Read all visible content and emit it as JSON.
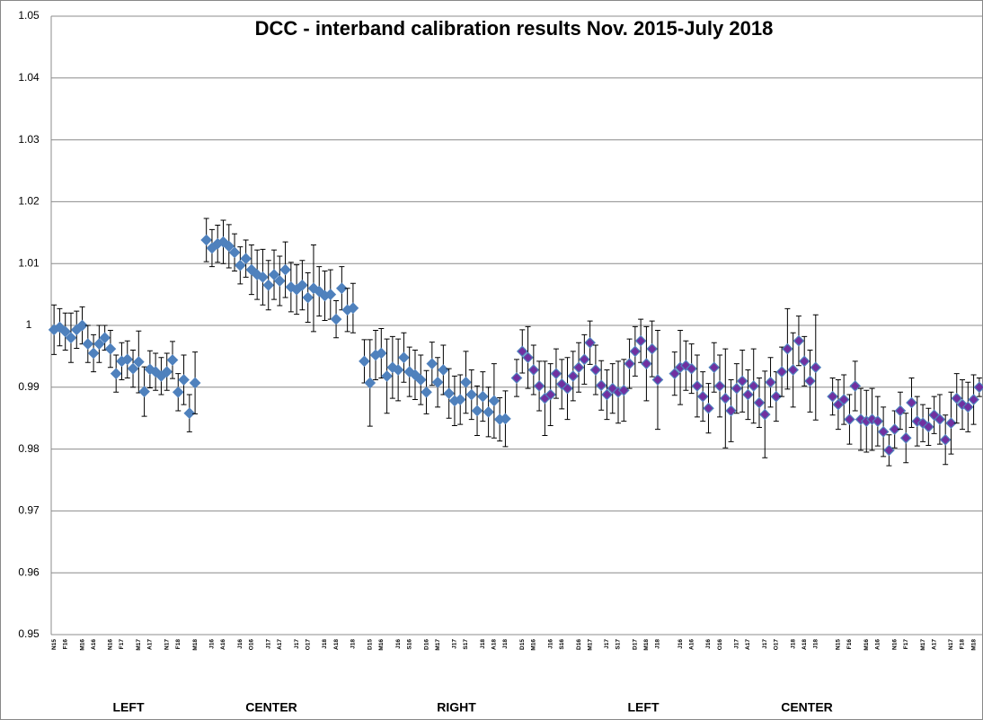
{
  "chart_data": {
    "type": "scatter",
    "title": "DCC - interband calibration results Nov. 2015-July 2018",
    "group_labels": [
      "LEFT",
      "CENTER",
      "RIGHT",
      "LEFT",
      "CENTER"
    ],
    "categories": [
      "N15",
      null,
      "F16",
      null,
      null,
      "M16",
      null,
      "A16",
      null,
      null,
      "N16",
      null,
      "F17",
      null,
      null,
      "M17",
      null,
      "A17",
      null,
      null,
      "N17",
      null,
      "F18",
      null,
      null,
      "M18",
      null,
      null,
      "J16",
      null,
      "A16",
      null,
      null,
      "J16",
      null,
      "O16",
      null,
      null,
      "J17",
      null,
      "A17",
      null,
      null,
      "J17",
      null,
      "O17",
      null,
      null,
      "J18",
      null,
      "A18",
      null,
      null,
      "J18",
      null,
      null,
      "D15",
      null,
      "M16",
      null,
      null,
      "J16",
      null,
      "S16",
      null,
      null,
      "D16",
      null,
      "M17",
      null,
      null,
      "J17",
      null,
      "S17",
      null,
      null,
      "J18",
      null,
      "A18",
      null,
      "J18",
      null,
      null,
      "D15",
      null,
      "M16",
      null,
      null,
      "J16",
      null,
      "S16",
      null,
      null,
      "D16",
      null,
      "M17",
      null,
      null,
      "J17",
      null,
      "S17",
      null,
      null,
      "D17",
      null,
      "M18",
      null,
      "J18",
      null,
      null,
      null,
      "J16",
      null,
      "A16",
      null,
      null,
      "J16",
      null,
      "O16",
      null,
      null,
      "J17",
      null,
      "A17",
      null,
      null,
      "J17",
      null,
      "O17",
      null,
      null,
      "J18",
      null,
      "A18",
      null,
      "J18",
      null,
      null,
      null,
      "N15",
      null,
      "F16",
      null,
      null,
      "M16",
      null,
      "A16",
      null,
      null,
      "N16",
      null,
      "F17",
      null,
      null,
      "M17",
      null,
      "A17",
      null,
      null,
      "N17",
      null,
      "F18",
      null,
      "M18",
      null
    ],
    "ylim": [
      0.95,
      1.05
    ],
    "yticks": [
      0.95,
      0.96,
      0.97,
      0.98,
      0.99,
      1,
      1.01,
      1.02,
      1.03,
      1.04,
      1.05
    ],
    "grid": true,
    "series": [
      {
        "color": "#4f81bd",
        "values": [
          0.9993,
          0.9997,
          0.999,
          0.998,
          0.9993,
          1.0,
          0.997,
          0.9955,
          0.997,
          0.998,
          0.9962,
          0.9922,
          0.9942,
          0.9945,
          0.993,
          0.9941,
          0.9893,
          0.9929,
          0.9925,
          0.9918,
          0.9925,
          0.9944,
          0.9892,
          0.9912,
          0.9858,
          0.9907,
          null,
          1.0138,
          1.0125,
          1.0132,
          1.0135,
          1.0128,
          1.0118,
          1.0097,
          1.0108,
          1.009,
          1.0082,
          1.0078,
          1.0065,
          1.0082,
          1.0072,
          1.009,
          1.0062,
          1.0058,
          1.0065,
          1.0045,
          1.006,
          1.0055,
          1.0048,
          1.005,
          1.001,
          1.006,
          1.0025,
          1.0028,
          null,
          0.9942,
          0.9907,
          0.9952,
          0.9955,
          0.9918,
          0.9932,
          0.9928,
          0.9948,
          0.9925,
          0.992,
          0.9912,
          0.9892,
          0.9938,
          0.9908,
          0.9928,
          0.989,
          0.9878,
          0.988,
          0.9908,
          0.9888,
          0.9862,
          0.9885,
          0.986,
          0.9878,
          0.9848,
          0.9849,
          null,
          null,
          null,
          null,
          null,
          null,
          null,
          null,
          null,
          null,
          null,
          null,
          null,
          null,
          null,
          null,
          null,
          null,
          null,
          null,
          null,
          null,
          null,
          null,
          null,
          null,
          null,
          null,
          null,
          null,
          null,
          null,
          null,
          null,
          null,
          null,
          null,
          null,
          null,
          null,
          null,
          null,
          null,
          null,
          null,
          null,
          null,
          null,
          null,
          null,
          null,
          null,
          null,
          null,
          null,
          null,
          null,
          null,
          null,
          null,
          null,
          null,
          null,
          null,
          null,
          null,
          null,
          null,
          null,
          null,
          null,
          null,
          null,
          null,
          null,
          null,
          null,
          null,
          null,
          null,
          null,
          null,
          null,
          null
        ],
        "errors": [
          0.004,
          0.003,
          0.003,
          0.004,
          0.003,
          0.003,
          0.003,
          0.003,
          0.003,
          0.002,
          0.003,
          0.003,
          0.003,
          0.003,
          0.003,
          0.005,
          0.004,
          0.003,
          0.003,
          0.003,
          0.003,
          0.003,
          0.003,
          0.004,
          0.003,
          0.005,
          null,
          0.0035,
          0.003,
          0.003,
          0.0035,
          0.0035,
          0.003,
          0.003,
          0.003,
          0.004,
          0.004,
          0.0045,
          0.004,
          0.004,
          0.004,
          0.0045,
          0.004,
          0.004,
          0.004,
          0.004,
          0.007,
          0.004,
          0.004,
          0.004,
          0.003,
          0.0035,
          0.0035,
          0.004,
          null,
          0.0035,
          0.007,
          0.004,
          0.004,
          0.006,
          0.005,
          0.005,
          0.004,
          0.004,
          0.004,
          0.004,
          0.0035,
          0.0035,
          0.004,
          0.004,
          0.004,
          0.004,
          0.004,
          0.005,
          0.004,
          0.004,
          0.004,
          0.004,
          0.006,
          0.0035,
          0.0045,
          null,
          null,
          null,
          null,
          null,
          null,
          null,
          null,
          null,
          null,
          null,
          null,
          null,
          null,
          null,
          null,
          null,
          null,
          null,
          null,
          null,
          null,
          null,
          null,
          null,
          null,
          null,
          null,
          null,
          null,
          null,
          null,
          null,
          null,
          null,
          null,
          null,
          null,
          null,
          null,
          null,
          null,
          null,
          null,
          null,
          null,
          null,
          null,
          null,
          null,
          null,
          null,
          null,
          null,
          null,
          null,
          null,
          null,
          null,
          null,
          null,
          null,
          null,
          null,
          null,
          null,
          null,
          null,
          null,
          null,
          null,
          null,
          null,
          null,
          null,
          null,
          null,
          null,
          null,
          null,
          null,
          null,
          null,
          null
        ]
      },
      {
        "color": "#7030a0",
        "values": [
          null,
          null,
          null,
          null,
          null,
          null,
          null,
          null,
          null,
          null,
          null,
          null,
          null,
          null,
          null,
          null,
          null,
          null,
          null,
          null,
          null,
          null,
          null,
          null,
          null,
          null,
          null,
          null,
          null,
          null,
          null,
          null,
          null,
          null,
          null,
          null,
          null,
          null,
          null,
          null,
          null,
          null,
          null,
          null,
          null,
          null,
          null,
          null,
          null,
          null,
          null,
          null,
          null,
          null,
          null,
          null,
          null,
          null,
          null,
          null,
          null,
          null,
          null,
          null,
          null,
          null,
          null,
          null,
          null,
          null,
          null,
          null,
          null,
          null,
          null,
          null,
          null,
          null,
          null,
          null,
          null,
          null,
          0.9915,
          0.9958,
          0.9948,
          0.9928,
          0.9902,
          0.9882,
          0.9888,
          0.9922,
          0.9905,
          0.9898,
          0.9918,
          0.9932,
          0.9945,
          0.9972,
          0.9928,
          0.9903,
          0.9888,
          0.9898,
          0.9892,
          0.9895,
          0.9938,
          0.9958,
          0.9975,
          0.9938,
          0.9962,
          0.9912,
          null,
          null,
          0.9922,
          0.9932,
          0.9935,
          0.993,
          0.9902,
          0.9885,
          0.9866,
          0.9932,
          0.9902,
          0.9882,
          0.9862,
          0.9898,
          0.991,
          0.9888,
          0.9902,
          0.9875,
          0.9856,
          0.9908,
          0.9885,
          0.9925,
          0.9962,
          0.9928,
          0.9975,
          0.9942,
          0.991,
          0.9932,
          null,
          null,
          0.9885,
          0.9872,
          0.988,
          0.9848,
          0.9902,
          0.9848,
          0.9845,
          0.9848,
          0.9845,
          0.9828,
          0.9798,
          0.9832,
          0.9862,
          0.9818,
          0.9875,
          0.9845,
          0.9842,
          0.9836,
          0.9855,
          0.9848,
          0.9815,
          0.9842,
          0.9882,
          0.9872,
          0.9868,
          0.988,
          0.99
        ],
        "errors": [
          null,
          null,
          null,
          null,
          null,
          null,
          null,
          null,
          null,
          null,
          null,
          null,
          null,
          null,
          null,
          null,
          null,
          null,
          null,
          null,
          null,
          null,
          null,
          null,
          null,
          null,
          null,
          null,
          null,
          null,
          null,
          null,
          null,
          null,
          null,
          null,
          null,
          null,
          null,
          null,
          null,
          null,
          null,
          null,
          null,
          null,
          null,
          null,
          null,
          null,
          null,
          null,
          null,
          null,
          null,
          null,
          null,
          null,
          null,
          null,
          null,
          null,
          null,
          null,
          null,
          null,
          null,
          null,
          null,
          null,
          null,
          null,
          null,
          null,
          null,
          null,
          null,
          null,
          null,
          null,
          null,
          null,
          0.003,
          0.0035,
          0.005,
          0.004,
          0.004,
          0.006,
          0.005,
          0.004,
          0.004,
          0.005,
          0.004,
          0.004,
          0.004,
          0.0035,
          0.004,
          0.004,
          0.004,
          0.004,
          0.005,
          0.005,
          0.004,
          0.004,
          0.0035,
          0.006,
          0.0045,
          0.008,
          null,
          null,
          0.0035,
          0.006,
          0.004,
          0.004,
          0.005,
          0.004,
          0.004,
          0.004,
          0.005,
          0.008,
          0.005,
          0.004,
          0.005,
          0.004,
          0.006,
          0.004,
          0.007,
          0.004,
          0.004,
          0.004,
          0.0065,
          0.006,
          0.004,
          0.004,
          0.005,
          0.0085,
          null,
          null,
          0.003,
          0.004,
          0.004,
          0.004,
          0.004,
          0.005,
          0.005,
          0.005,
          0.004,
          0.004,
          0.0025,
          0.003,
          0.003,
          0.004,
          0.004,
          0.004,
          0.003,
          0.003,
          0.003,
          0.004,
          0.004,
          0.005,
          0.004,
          0.004,
          0.004,
          0.004,
          0.0015
        ]
      }
    ]
  }
}
